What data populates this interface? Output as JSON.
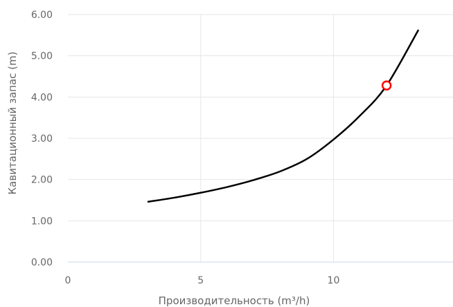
{
  "chart_data": {
    "type": "line",
    "title": "",
    "xlabel": "Производительность (m³/h)",
    "ylabel": "Кавитационный запас (m)",
    "xlim": [
      0,
      14.5
    ],
    "ylim": [
      0,
      6
    ],
    "x_ticks": [
      0,
      5,
      10
    ],
    "y_ticks": [
      0,
      1,
      2,
      3,
      4,
      5,
      6
    ],
    "x_tick_labels": [
      "0",
      "5",
      "10"
    ],
    "y_tick_labels": [
      "0.00",
      "1.00",
      "2.00",
      "3.00",
      "4.00",
      "5.00",
      "6.00"
    ],
    "grid": true,
    "colors": {
      "line": "#000000",
      "marker": "#ff0000",
      "grid": "#e6e6e6",
      "text": "#666666"
    },
    "series": [
      {
        "x": [
          3.0,
          4.0,
          5.0,
          6.0,
          7.0,
          8.0,
          9.0,
          10.0,
          11.0,
          12.0,
          13.2
        ],
        "y": [
          1.46,
          1.56,
          1.68,
          1.82,
          1.99,
          2.2,
          2.5,
          2.97,
          3.55,
          4.28,
          5.63
        ]
      }
    ],
    "markers": [
      {
        "x": 12.0,
        "y": 4.28
      }
    ]
  }
}
